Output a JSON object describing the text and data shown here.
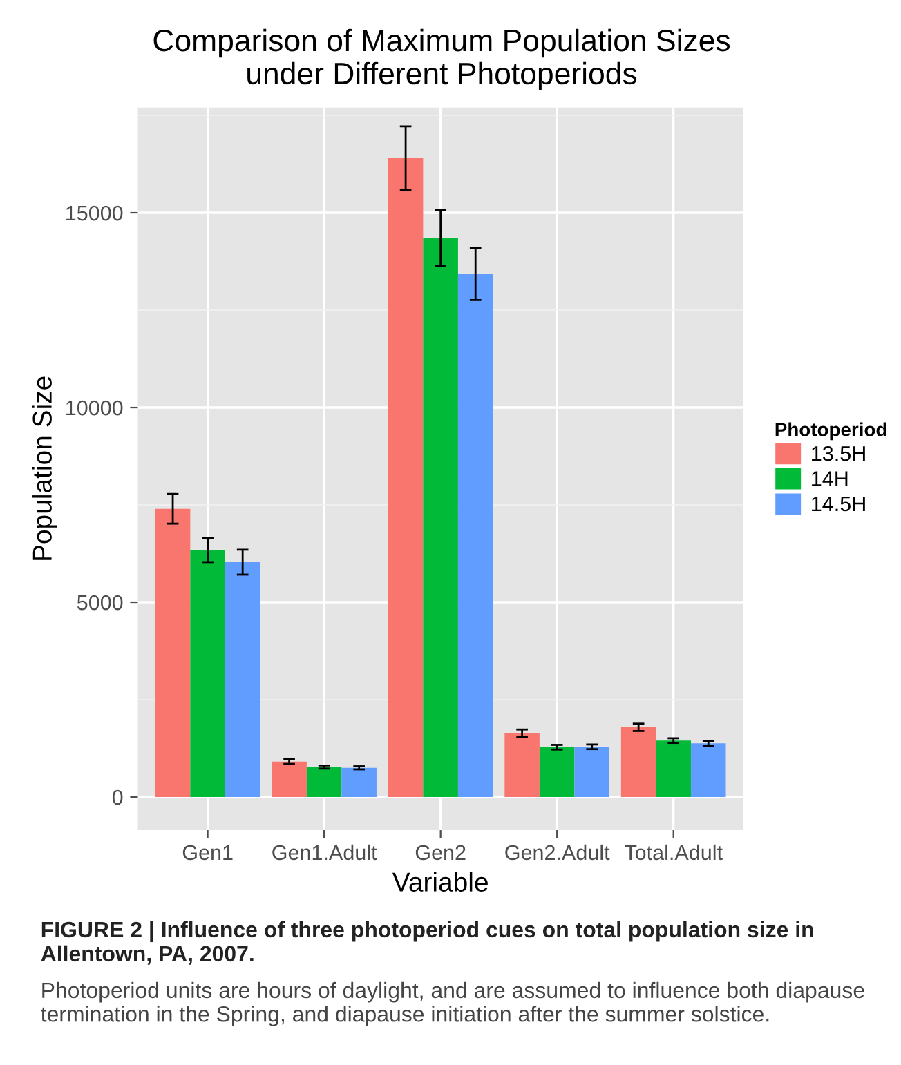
{
  "chart_data": {
    "type": "bar",
    "title": "Comparison of Maximum Population Sizes\nunder Different Photoperiods",
    "xlabel": "Variable",
    "ylabel": "Population Size",
    "legend_title": "Photoperiod",
    "categories": [
      "Gen1",
      "Gen1.Adult",
      "Gen2",
      "Gen2.Adult",
      "Total.Adult"
    ],
    "series": [
      {
        "name": "13.5H",
        "color": "#f8766d",
        "values": [
          7400,
          910,
          16400,
          1640,
          1790
        ],
        "errors": [
          380,
          60,
          820,
          95,
          95
        ]
      },
      {
        "name": "14H",
        "color": "#00ba38",
        "values": [
          6340,
          770,
          14350,
          1280,
          1450
        ],
        "errors": [
          310,
          40,
          720,
          60,
          60
        ]
      },
      {
        "name": "14.5H",
        "color": "#619cff",
        "values": [
          6030,
          750,
          13430,
          1290,
          1380
        ],
        "errors": [
          320,
          40,
          670,
          60,
          60
        ]
      }
    ],
    "ylim": [
      -850,
      17700
    ],
    "yticks": [
      0,
      5000,
      10000,
      15000
    ],
    "grid": true,
    "legend": "right",
    "annotations": [
      "FIGURE 2 | Influence of three photoperiod cues on total population size in Allentown, PA, 2007.",
      "Photoperiod units are hours of daylight, and are assumed to influence both diapause termination in the Spring, and diapause initiation after the summer solstice."
    ]
  }
}
